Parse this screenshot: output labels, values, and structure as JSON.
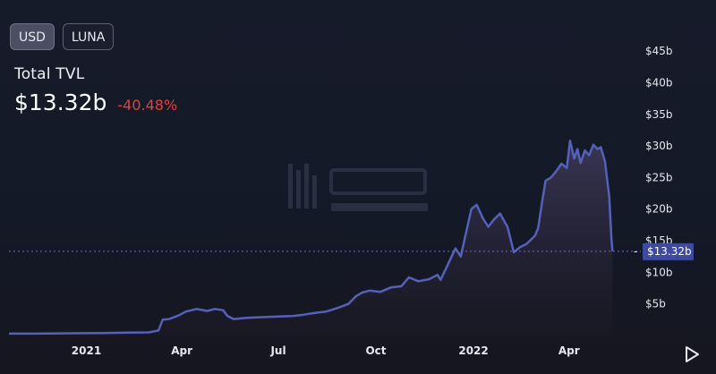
{
  "currency_toggle": {
    "options": [
      {
        "label": "USD",
        "active": true
      },
      {
        "label": "LUNA",
        "active": false
      }
    ]
  },
  "header": {
    "title": "Total TVL",
    "value": "$13.32b",
    "change": "-40.48%"
  },
  "colors": {
    "line": "#5561b8",
    "change_negative": "#e0413e",
    "price_tag_bg": "#3d4a9e"
  },
  "icons": {
    "play": "play-icon"
  },
  "chart_data": {
    "type": "area",
    "title": "",
    "xlabel": "",
    "ylabel": "",
    "y_axis_position": "right",
    "ylim": [
      0,
      47
    ],
    "y_ticks": [
      {
        "value": 5,
        "label": "$5b"
      },
      {
        "value": 10,
        "label": "$10b"
      },
      {
        "value": 15,
        "label": "$15b"
      },
      {
        "value": 20,
        "label": "$20b"
      },
      {
        "value": 25,
        "label": "$25b"
      },
      {
        "value": 30,
        "label": "$30b"
      },
      {
        "value": 35,
        "label": "$35b"
      },
      {
        "value": 40,
        "label": "$40b"
      },
      {
        "value": 45,
        "label": "$45b"
      }
    ],
    "x_range": [
      "2020-10-20",
      "2022-06-01"
    ],
    "x_ticks": [
      {
        "date": "2021-01-01",
        "label": "2021"
      },
      {
        "date": "2021-04-01",
        "label": "Apr"
      },
      {
        "date": "2021-07-01",
        "label": "Jul"
      },
      {
        "date": "2021-10-01",
        "label": "Oct"
      },
      {
        "date": "2022-01-01",
        "label": "2022"
      },
      {
        "date": "2022-04-01",
        "label": "Apr"
      }
    ],
    "current": {
      "value": 13.32,
      "label": "$13.32b"
    },
    "grid": false,
    "series": [
      {
        "points": [
          [
            "2020-10-20",
            0.3
          ],
          [
            "2020-11-15",
            0.3
          ],
          [
            "2020-12-15",
            0.35
          ],
          [
            "2021-01-15",
            0.4
          ],
          [
            "2021-02-10",
            0.45
          ],
          [
            "2021-03-01",
            0.5
          ],
          [
            "2021-03-10",
            0.8
          ],
          [
            "2021-03-14",
            2.5
          ],
          [
            "2021-03-20",
            2.6
          ],
          [
            "2021-03-28",
            3.1
          ],
          [
            "2021-04-05",
            3.8
          ],
          [
            "2021-04-15",
            4.2
          ],
          [
            "2021-04-25",
            3.9
          ],
          [
            "2021-05-02",
            4.2
          ],
          [
            "2021-05-10",
            4.0
          ],
          [
            "2021-05-14",
            3.1
          ],
          [
            "2021-05-20",
            2.6
          ],
          [
            "2021-06-01",
            2.8
          ],
          [
            "2021-06-15",
            2.9
          ],
          [
            "2021-07-01",
            3.0
          ],
          [
            "2021-07-15",
            3.1
          ],
          [
            "2021-07-25",
            3.3
          ],
          [
            "2021-08-05",
            3.6
          ],
          [
            "2021-08-15",
            3.8
          ],
          [
            "2021-08-25",
            4.3
          ],
          [
            "2021-09-05",
            5.0
          ],
          [
            "2021-09-12",
            6.2
          ],
          [
            "2021-09-18",
            6.8
          ],
          [
            "2021-09-25",
            7.1
          ],
          [
            "2021-10-05",
            6.9
          ],
          [
            "2021-10-15",
            7.6
          ],
          [
            "2021-10-25",
            7.8
          ],
          [
            "2021-11-01",
            9.2
          ],
          [
            "2021-11-10",
            8.6
          ],
          [
            "2021-11-20",
            8.9
          ],
          [
            "2021-11-28",
            9.6
          ],
          [
            "2021-12-01",
            8.8
          ],
          [
            "2021-12-10",
            12.0
          ],
          [
            "2021-12-15",
            13.8
          ],
          [
            "2021-12-20",
            12.5
          ],
          [
            "2021-12-26",
            17.0
          ],
          [
            "2021-12-30",
            20.0
          ],
          [
            "2022-01-04",
            20.7
          ],
          [
            "2022-01-10",
            18.5
          ],
          [
            "2022-01-15",
            17.2
          ],
          [
            "2022-01-20",
            18.3
          ],
          [
            "2022-01-26",
            19.3
          ],
          [
            "2022-02-02",
            17.2
          ],
          [
            "2022-02-08",
            13.2
          ],
          [
            "2022-02-14",
            14.0
          ],
          [
            "2022-02-20",
            14.5
          ],
          [
            "2022-02-28",
            15.8
          ],
          [
            "2022-03-03",
            17.0
          ],
          [
            "2022-03-07",
            21.5
          ],
          [
            "2022-03-10",
            24.5
          ],
          [
            "2022-03-15",
            25.0
          ],
          [
            "2022-03-20",
            26.0
          ],
          [
            "2022-03-25",
            27.2
          ],
          [
            "2022-03-30",
            26.5
          ],
          [
            "2022-04-02",
            30.8
          ],
          [
            "2022-04-06",
            28.0
          ],
          [
            "2022-04-09",
            29.5
          ],
          [
            "2022-04-12",
            27.3
          ],
          [
            "2022-04-16",
            29.3
          ],
          [
            "2022-04-20",
            28.5
          ],
          [
            "2022-04-24",
            30.2
          ],
          [
            "2022-04-28",
            29.5
          ],
          [
            "2022-05-01",
            29.8
          ],
          [
            "2022-05-05",
            27.5
          ],
          [
            "2022-05-09",
            22.0
          ],
          [
            "2022-05-11",
            15.5
          ],
          [
            "2022-05-12",
            13.32
          ]
        ]
      }
    ]
  }
}
